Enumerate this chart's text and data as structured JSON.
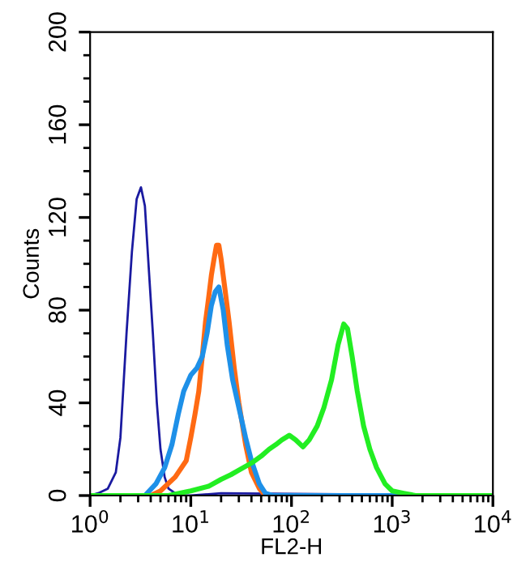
{
  "chart_data": {
    "type": "line",
    "xlabel": "FL2-H",
    "ylabel": "Counts",
    "log": "x",
    "xlim": [
      1,
      10000
    ],
    "ylim": [
      0,
      200
    ],
    "xticks": [
      {
        "value": 1,
        "label": "10$^{0}$"
      },
      {
        "value": 10,
        "label": "10$^{1}$"
      },
      {
        "value": 100,
        "label": "10$^{2}$"
      },
      {
        "value": 1000,
        "label": "10$^{3}$"
      },
      {
        "value": 10000,
        "label": "10$^{4}$"
      }
    ],
    "yticks": [
      0,
      40,
      80,
      120,
      160,
      200
    ],
    "grid": false,
    "marker": "none",
    "line_style": "solid",
    "series": [
      {
        "color": "#1a1aa0",
        "x": [
          1,
          1.2,
          1.5,
          1.8,
          2,
          2.3,
          2.6,
          2.9,
          3.2,
          3.5,
          3.8,
          4.2,
          4.6,
          5,
          5.5,
          6,
          7,
          8,
          10,
          20,
          10000
        ],
        "values": [
          0,
          1,
          3,
          10,
          25,
          70,
          105,
          128,
          133,
          125,
          100,
          70,
          40,
          20,
          8,
          3,
          1,
          0,
          0,
          1,
          0
        ]
      },
      {
        "color": "#ff6a13",
        "x": [
          1,
          4,
          5,
          7,
          9,
          10,
          11,
          12,
          13,
          14,
          15,
          16,
          17,
          18,
          19,
          20,
          22,
          24,
          27,
          30,
          35,
          40,
          48,
          55,
          10000
        ],
        "values": [
          0,
          0,
          2,
          8,
          15,
          25,
          35,
          45,
          60,
          75,
          85,
          95,
          102,
          108,
          108,
          102,
          88,
          75,
          55,
          40,
          22,
          10,
          3,
          0,
          0
        ]
      },
      {
        "color": "#1e90e8",
        "x": [
          1,
          3.5,
          4.5,
          5.5,
          6.5,
          7.5,
          8.5,
          10,
          11.5,
          13,
          14.5,
          16,
          17.5,
          19,
          21,
          23,
          26,
          30,
          35,
          40,
          48,
          55,
          65,
          10000
        ],
        "values": [
          0,
          0,
          5,
          12,
          22,
          35,
          45,
          52,
          55,
          60,
          70,
          82,
          88,
          90,
          80,
          65,
          50,
          38,
          25,
          15,
          5,
          1,
          0,
          0
        ]
      },
      {
        "color": "#22ee22",
        "x": [
          1,
          6,
          10,
          15,
          20,
          25,
          30,
          40,
          50,
          60,
          70,
          80,
          95,
          110,
          130,
          150,
          180,
          210,
          250,
          290,
          330,
          360,
          400,
          450,
          520,
          600,
          700,
          850,
          1000,
          1300,
          1700,
          2200,
          10000
        ],
        "values": [
          0,
          0,
          2,
          4,
          7,
          9,
          11,
          14,
          17,
          20,
          22,
          24,
          26,
          24,
          21,
          24,
          30,
          38,
          50,
          65,
          74,
          72,
          60,
          45,
          30,
          20,
          12,
          5,
          2,
          1,
          0,
          0,
          0
        ]
      }
    ]
  }
}
